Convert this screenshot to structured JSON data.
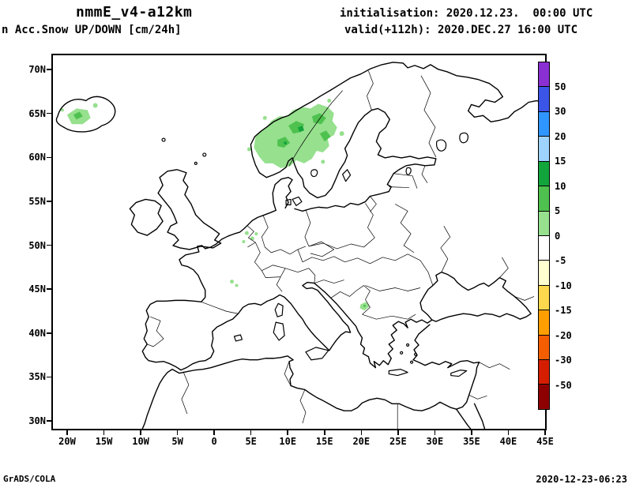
{
  "header": {
    "model_title": "nmmE_v4-a12km",
    "product_title": "n Acc.Snow UP/DOWN [cm/24h]",
    "initialisation": "initialisation: 2020.12.23.  00:00 UTC",
    "valid": "valid(+112h): 2020.DEC.27 16:00 UTC"
  },
  "map": {
    "lat_ticks": [
      "70N",
      "65N",
      "60N",
      "55N",
      "50N",
      "45N",
      "40N",
      "35N",
      "30N"
    ],
    "lon_ticks": [
      "20W",
      "15W",
      "10W",
      "5W",
      "0",
      "5E",
      "10E",
      "15E",
      "20E",
      "25E",
      "30E",
      "35E",
      "40E",
      "45E"
    ],
    "snow_colors": {
      "light": "#96e08e",
      "medium": "#4ec14e",
      "dark": "#12a53c"
    },
    "snow_regions": [
      "southern Norway and central Sweden: 5-15 cm",
      "western Iceland: 5-10 cm",
      "small specks Benelux: ~5 cm",
      "small speck central France: ~5 cm",
      "small speck Serbia/Balkans: ~5 cm"
    ]
  },
  "colorbar": {
    "labels": [
      "50",
      "30",
      "20",
      "15",
      "10",
      "5",
      "0",
      "-5",
      "-10",
      "-15",
      "-20",
      "-30",
      "-50"
    ],
    "colors": [
      "#8a2fd1",
      "#3a55e8",
      "#2f95ff",
      "#9ed2ff",
      "#12a53c",
      "#4ec14e",
      "#96e08e",
      "#ffffff",
      "#ffffcf",
      "#ffd84d",
      "#ff9e00",
      "#f45e00",
      "#d51e00",
      "#8e0000"
    ]
  },
  "footer": {
    "credit": "GrADS/COLA",
    "timestamp": "2020-12-23-06:23"
  }
}
